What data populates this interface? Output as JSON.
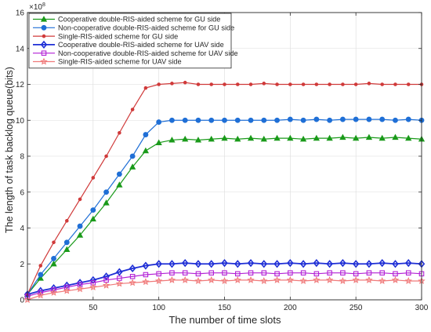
{
  "chart_data": {
    "type": "line",
    "title": "",
    "xlabel": "The number of time slots",
    "ylabel": "The length of task backlog queue(bits)",
    "y_exponent_label": "×10⁸",
    "y_exponent_base": "×10",
    "y_exponent_power": "8",
    "xlim": [
      0,
      300
    ],
    "ylim": [
      0,
      16
    ],
    "y_unit_scale": 100000000,
    "x_ticks": [
      50,
      100,
      150,
      200,
      250,
      300
    ],
    "x_tick_labels": [
      "50",
      "100",
      "150",
      "200",
      "250",
      "300"
    ],
    "y_ticks": [
      0,
      2,
      4,
      6,
      8,
      10,
      12,
      14,
      16
    ],
    "y_tick_labels": [
      "0",
      "2",
      "4",
      "6",
      "8",
      "10",
      "12",
      "14",
      "16"
    ],
    "grid": true,
    "legend_position": "top-left",
    "x": [
      0,
      10,
      20,
      30,
      40,
      50,
      60,
      70,
      80,
      90,
      100,
      110,
      120,
      130,
      140,
      150,
      160,
      170,
      180,
      190,
      200,
      210,
      220,
      230,
      240,
      250,
      260,
      270,
      280,
      290,
      300
    ],
    "series": [
      {
        "name": "Cooperative double-RIS-aided scheme for GU side",
        "color": "#1a9a1a",
        "marker": "triangle",
        "values": [
          0.3,
          1.2,
          2.0,
          2.8,
          3.6,
          4.5,
          5.4,
          6.4,
          7.4,
          8.3,
          8.75,
          8.9,
          8.95,
          8.9,
          8.95,
          9.0,
          8.95,
          9.0,
          8.95,
          9.0,
          9.0,
          8.95,
          9.0,
          9.0,
          9.05,
          9.0,
          9.05,
          9.0,
          9.05,
          9.0,
          8.95
        ]
      },
      {
        "name": "Non-cooperative double-RIS-aided scheme for GU side",
        "color": "#1f6fd6",
        "marker": "circle",
        "values": [
          0.3,
          1.4,
          2.3,
          3.2,
          4.1,
          5.0,
          6.0,
          7.0,
          8.0,
          9.2,
          9.9,
          10.0,
          10.0,
          10.0,
          10.0,
          10.0,
          10.0,
          10.0,
          10.0,
          10.0,
          10.05,
          10.0,
          10.05,
          10.0,
          10.05,
          10.05,
          10.05,
          10.05,
          10.0,
          10.05,
          10.0
        ]
      },
      {
        "name": "Single-RIS-aided scheme for GU side",
        "color": "#d03a3a",
        "marker": "dot",
        "values": [
          0.3,
          1.9,
          3.2,
          4.4,
          5.6,
          6.8,
          8.0,
          9.3,
          10.6,
          11.8,
          12.0,
          12.05,
          12.1,
          12.0,
          12.0,
          12.0,
          12.0,
          12.0,
          12.05,
          12.0,
          12.0,
          12.0,
          12.0,
          12.0,
          12.0,
          12.0,
          12.05,
          12.0,
          12.0,
          12.0,
          12.0
        ]
      },
      {
        "name": "Cooperative double-RIS-aided scheme for UAV side",
        "color": "#1f2fd6",
        "marker": "diamond",
        "values": [
          0.3,
          0.5,
          0.65,
          0.8,
          0.95,
          1.1,
          1.3,
          1.55,
          1.75,
          1.9,
          2.0,
          2.0,
          2.05,
          2.0,
          2.0,
          2.05,
          2.0,
          2.05,
          2.0,
          2.0,
          2.05,
          2.0,
          2.05,
          2.0,
          2.05,
          2.0,
          2.0,
          2.05,
          2.0,
          2.05,
          2.0
        ]
      },
      {
        "name": "Non-cooperative double-RIS-aided scheme for UAV side",
        "color": "#b321d6",
        "marker": "square",
        "values": [
          0.2,
          0.4,
          0.55,
          0.7,
          0.85,
          0.95,
          1.1,
          1.2,
          1.3,
          1.4,
          1.45,
          1.5,
          1.5,
          1.45,
          1.5,
          1.5,
          1.45,
          1.5,
          1.5,
          1.45,
          1.5,
          1.5,
          1.45,
          1.5,
          1.5,
          1.45,
          1.5,
          1.5,
          1.45,
          1.5,
          1.45
        ]
      },
      {
        "name": "Single-RIS-aided scheme for UAV side",
        "color": "#f07a7a",
        "marker": "star",
        "values": [
          0.0,
          0.25,
          0.4,
          0.5,
          0.6,
          0.7,
          0.8,
          0.9,
          0.95,
          1.0,
          1.05,
          1.1,
          1.1,
          1.05,
          1.1,
          1.05,
          1.1,
          1.1,
          1.05,
          1.1,
          1.1,
          1.05,
          1.1,
          1.1,
          1.05,
          1.1,
          1.1,
          1.05,
          1.1,
          1.05,
          1.05
        ]
      }
    ]
  }
}
